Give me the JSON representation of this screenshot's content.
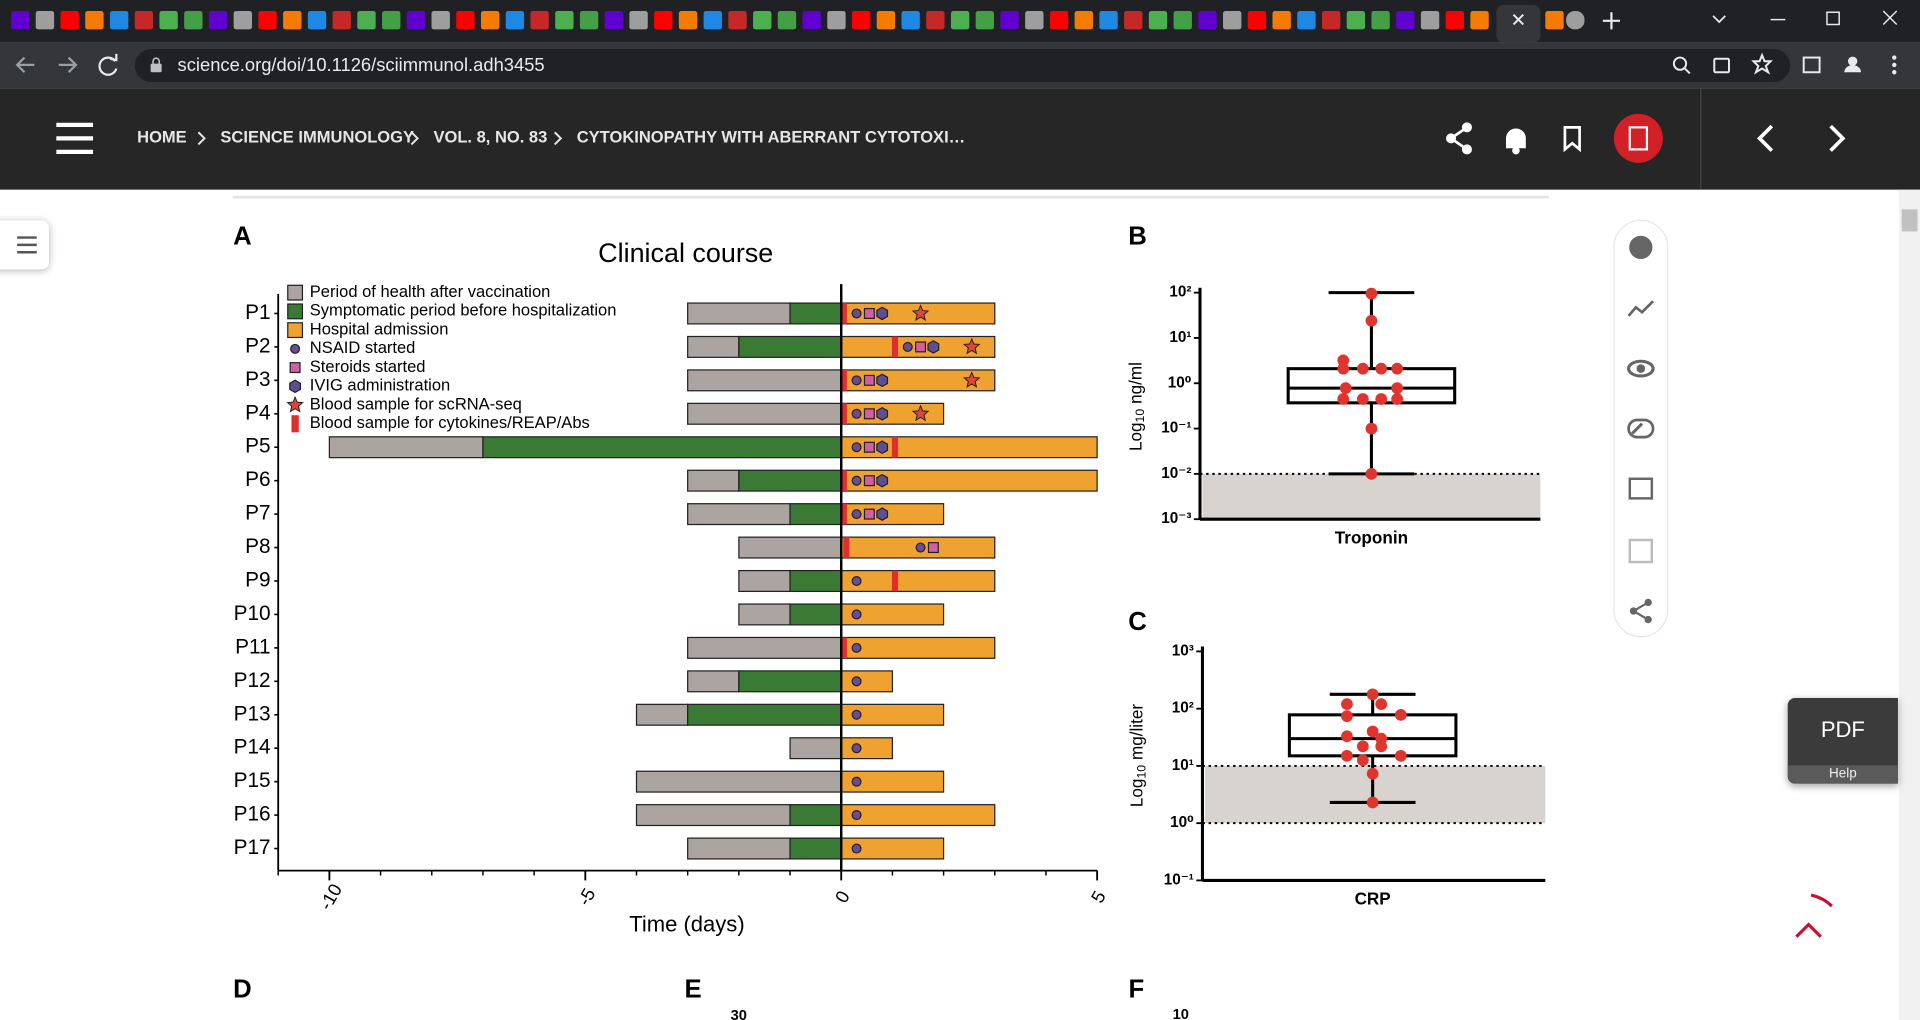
{
  "browser": {
    "url": "science.org/doi/10.1126/sciimmunol.adh3455"
  },
  "site_header": {
    "breadcrumb": [
      "HOME",
      "SCIENCE IMMUNOLOGY",
      "VOL. 8, NO. 83",
      "CYTOKINOPATHY WITH ABERRANT CYTOTOXI…"
    ]
  },
  "side_panel": {
    "pdf": "PDF",
    "help": "Help"
  },
  "figure": {
    "panel_labels": [
      "A",
      "B",
      "C",
      "D",
      "E",
      "F"
    ],
    "panel_a": {
      "type": "gantt",
      "title": "Clinical course",
      "xlabel": "Time (days)",
      "categories": [
        "P1",
        "P2",
        "P3",
        "P4",
        "P5",
        "P6",
        "P7",
        "P8",
        "P9",
        "P10",
        "P11",
        "P12",
        "P13",
        "P14",
        "P15",
        "P16",
        "P17"
      ],
      "xlim": [
        -11,
        5
      ],
      "xticks": [
        -10,
        -5,
        0,
        5
      ],
      "xminorticks": [
        -11,
        -10,
        -9,
        -8,
        -7,
        -6,
        -5,
        -4,
        -3,
        -2,
        -1,
        0,
        1,
        2,
        3,
        4,
        5
      ],
      "series": [
        {
          "name": "Period of health after vaccination",
          "color": "#aba4a0",
          "marker": "bar",
          "values": [
            [
              -3,
              -1
            ],
            [
              -3,
              -2
            ],
            [
              -3,
              0
            ],
            [
              -3,
              0
            ],
            [
              -10,
              -7
            ],
            [
              -3,
              -2
            ],
            [
              -3,
              -1
            ],
            [
              -2,
              0
            ],
            [
              -2,
              -1
            ],
            [
              -2,
              -1
            ],
            [
              -3,
              0
            ],
            [
              -3,
              -2
            ],
            [
              -4,
              -3
            ],
            [
              -1,
              0
            ],
            [
              -4,
              0
            ],
            [
              -4,
              -1
            ],
            [
              -3,
              -1
            ]
          ]
        },
        {
          "name": "Symptomatic period before hospitalization",
          "color": "#3a7a35",
          "marker": "bar",
          "values": [
            [
              -1,
              0
            ],
            [
              -2,
              0
            ],
            null,
            null,
            [
              -7,
              0
            ],
            [
              -2,
              0
            ],
            [
              -1,
              0
            ],
            null,
            [
              -1,
              0
            ],
            [
              -1,
              0
            ],
            null,
            [
              -2,
              0
            ],
            [
              -3,
              0
            ],
            null,
            null,
            [
              -1,
              0
            ],
            [
              -1,
              0
            ]
          ]
        },
        {
          "name": "Hospital admission",
          "color": "#f0a230",
          "marker": "bar",
          "values": [
            [
              0,
              3
            ],
            [
              0,
              3
            ],
            [
              0,
              3
            ],
            [
              0,
              2
            ],
            [
              0,
              5
            ],
            [
              0,
              5
            ],
            [
              0,
              2
            ],
            [
              0,
              3
            ],
            [
              0,
              3
            ],
            [
              0,
              2
            ],
            [
              0,
              3
            ],
            [
              0,
              1
            ],
            [
              0,
              2
            ],
            [
              0,
              1
            ],
            [
              0,
              2
            ],
            [
              0,
              3
            ],
            [
              0,
              2
            ]
          ]
        },
        {
          "name": "NSAID started",
          "color": "#6a4c93",
          "marker": "circle",
          "values": [
            0.3,
            1.3,
            0.3,
            0.3,
            0.3,
            0.3,
            0.3,
            1.55,
            0.3,
            0.3,
            0.3,
            0.3,
            0.3,
            0.3,
            0.3,
            0.3,
            0.3
          ]
        },
        {
          "name": "Steroids started",
          "color": "#d35fa2",
          "marker": "square",
          "values": [
            0.55,
            1.55,
            0.55,
            0.55,
            0.55,
            0.55,
            0.55,
            1.8,
            null,
            null,
            null,
            null,
            null,
            null,
            null,
            null,
            null
          ]
        },
        {
          "name": "IVIG administration",
          "color": "#5d4f91",
          "marker": "hexagon",
          "values": [
            0.8,
            1.8,
            0.8,
            0.8,
            0.8,
            0.8,
            0.8,
            null,
            null,
            null,
            null,
            null,
            null,
            null,
            null,
            null,
            null
          ]
        },
        {
          "name": "Blood sample for scRNA-seq",
          "color": "#e0453a",
          "marker": "star",
          "values": [
            1.55,
            2.55,
            2.55,
            1.55,
            null,
            null,
            null,
            null,
            null,
            null,
            null,
            null,
            null,
            null,
            null,
            null,
            null
          ]
        },
        {
          "name": "Blood sample for cytokines/REAP/Abs",
          "color": "#e02d2d",
          "marker": "rect",
          "values": [
            0.05,
            1.05,
            0.05,
            0.05,
            1.05,
            0.05,
            0.05,
            0.1,
            1.05,
            null,
            0.05,
            null,
            null,
            null,
            null,
            null,
            null
          ]
        }
      ]
    },
    "panel_b": {
      "type": "box",
      "category": "Troponin",
      "ylabel": {
        "base": "Log",
        "sub": "10",
        "unit": "ng/ml"
      },
      "log_scale": true,
      "ylim": [
        0.001,
        100
      ],
      "yticks": [
        {
          "value": 0.001,
          "label": "10⁻³"
        },
        {
          "value": 0.01,
          "label": "10⁻²"
        },
        {
          "value": 0.1,
          "label": "10⁻¹"
        },
        {
          "value": 1,
          "label": "10⁰"
        },
        {
          "value": 10,
          "label": "10¹"
        },
        {
          "value": 100,
          "label": "10²"
        }
      ],
      "reference_range": [
        0.001,
        0.01
      ],
      "reference_color": "#d9d3cf",
      "box": {
        "min": 0.01,
        "q1": 0.37,
        "median": 0.78,
        "q3": 2.1,
        "max": 100
      },
      "point_color": "#e0352f",
      "points": [
        95,
        24,
        3.2,
        2.1,
        2.1,
        2.1,
        2.1,
        0.78,
        0.78,
        0.45,
        0.45,
        0.45,
        0.45,
        0.1,
        0.01
      ]
    },
    "panel_c": {
      "type": "box",
      "category": "CRP",
      "ylabel": {
        "base": "Log",
        "sub": "10",
        "unit": "mg/liter"
      },
      "log_scale": true,
      "ylim": [
        0.1,
        1000
      ],
      "yticks": [
        {
          "value": 0.1,
          "label": "10⁻¹"
        },
        {
          "value": 1,
          "label": "10⁰"
        },
        {
          "value": 10,
          "label": "10¹"
        },
        {
          "value": 100,
          "label": "10²"
        },
        {
          "value": 1000,
          "label": "10³"
        }
      ],
      "reference_range": [
        1,
        10
      ],
      "reference_color": "#d9d3cf",
      "box": {
        "min": 2.3,
        "q1": 15,
        "median": 30,
        "q3": 78,
        "max": 178
      },
      "point_color": "#e0352f",
      "points": [
        178,
        120,
        120,
        74,
        78,
        40,
        33,
        30,
        22,
        22,
        15,
        15,
        12.6,
        7.3,
        2.3
      ]
    },
    "panel_e": {
      "ytick_top": 30
    },
    "panel_f": {
      "ytick_top": 10
    }
  }
}
